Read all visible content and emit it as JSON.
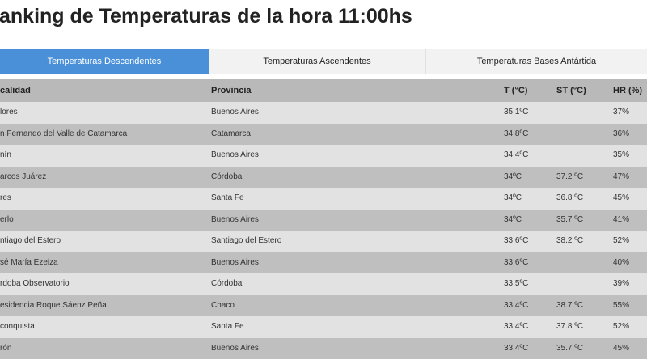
{
  "title": "anking de Temperaturas de la hora 11:00hs",
  "tabs": [
    {
      "label": "Temperaturas Descendentes",
      "active": true
    },
    {
      "label": "Temperaturas Ascendentes",
      "active": false
    },
    {
      "label": "Temperaturas Bases Antártida",
      "active": false
    }
  ],
  "colors": {
    "active_tab": "#4a90d9",
    "header_row": "#b9b9b9",
    "row_light": "#e2e2e2",
    "row_dark": "#bfbfbf"
  },
  "table": {
    "headers": [
      "calidad",
      "Provincia",
      "T (°C)",
      "ST (°C)",
      "HR (%)"
    ],
    "rows": [
      [
        "lores",
        "Buenos Aires",
        "35.1ºC",
        "",
        "37%"
      ],
      [
        "n Fernando del Valle de Catamarca",
        "Catamarca",
        "34.8ºC",
        "",
        "36%"
      ],
      [
        "nín",
        "Buenos Aires",
        "34.4ºC",
        "",
        "35%"
      ],
      [
        "arcos Juárez",
        "Córdoba",
        "34ºC",
        "37.2 ºC",
        "47%"
      ],
      [
        "res",
        "Santa Fe",
        "34ºC",
        "36.8 ºC",
        "45%"
      ],
      [
        "erlo",
        "Buenos Aires",
        "34ºC",
        "35.7 ºC",
        "41%"
      ],
      [
        "ntiago del Estero",
        "Santiago del Estero",
        "33.6ºC",
        "38.2 ºC",
        "52%"
      ],
      [
        "sé María Ezeiza",
        "Buenos Aires",
        "33.6ºC",
        "",
        "40%"
      ],
      [
        "rdoba Observatorio",
        "Córdoba",
        "33.5ºC",
        "",
        "39%"
      ],
      [
        "esidencia Roque Sáenz Peña",
        "Chaco",
        "33.4ºC",
        "38.7 ºC",
        "55%"
      ],
      [
        "conquista",
        "Santa Fe",
        "33.4ºC",
        "37.8 ºC",
        "52%"
      ],
      [
        "rón",
        "Buenos Aires",
        "33.4ºC",
        "35.7 ºC",
        "45%"
      ]
    ]
  }
}
